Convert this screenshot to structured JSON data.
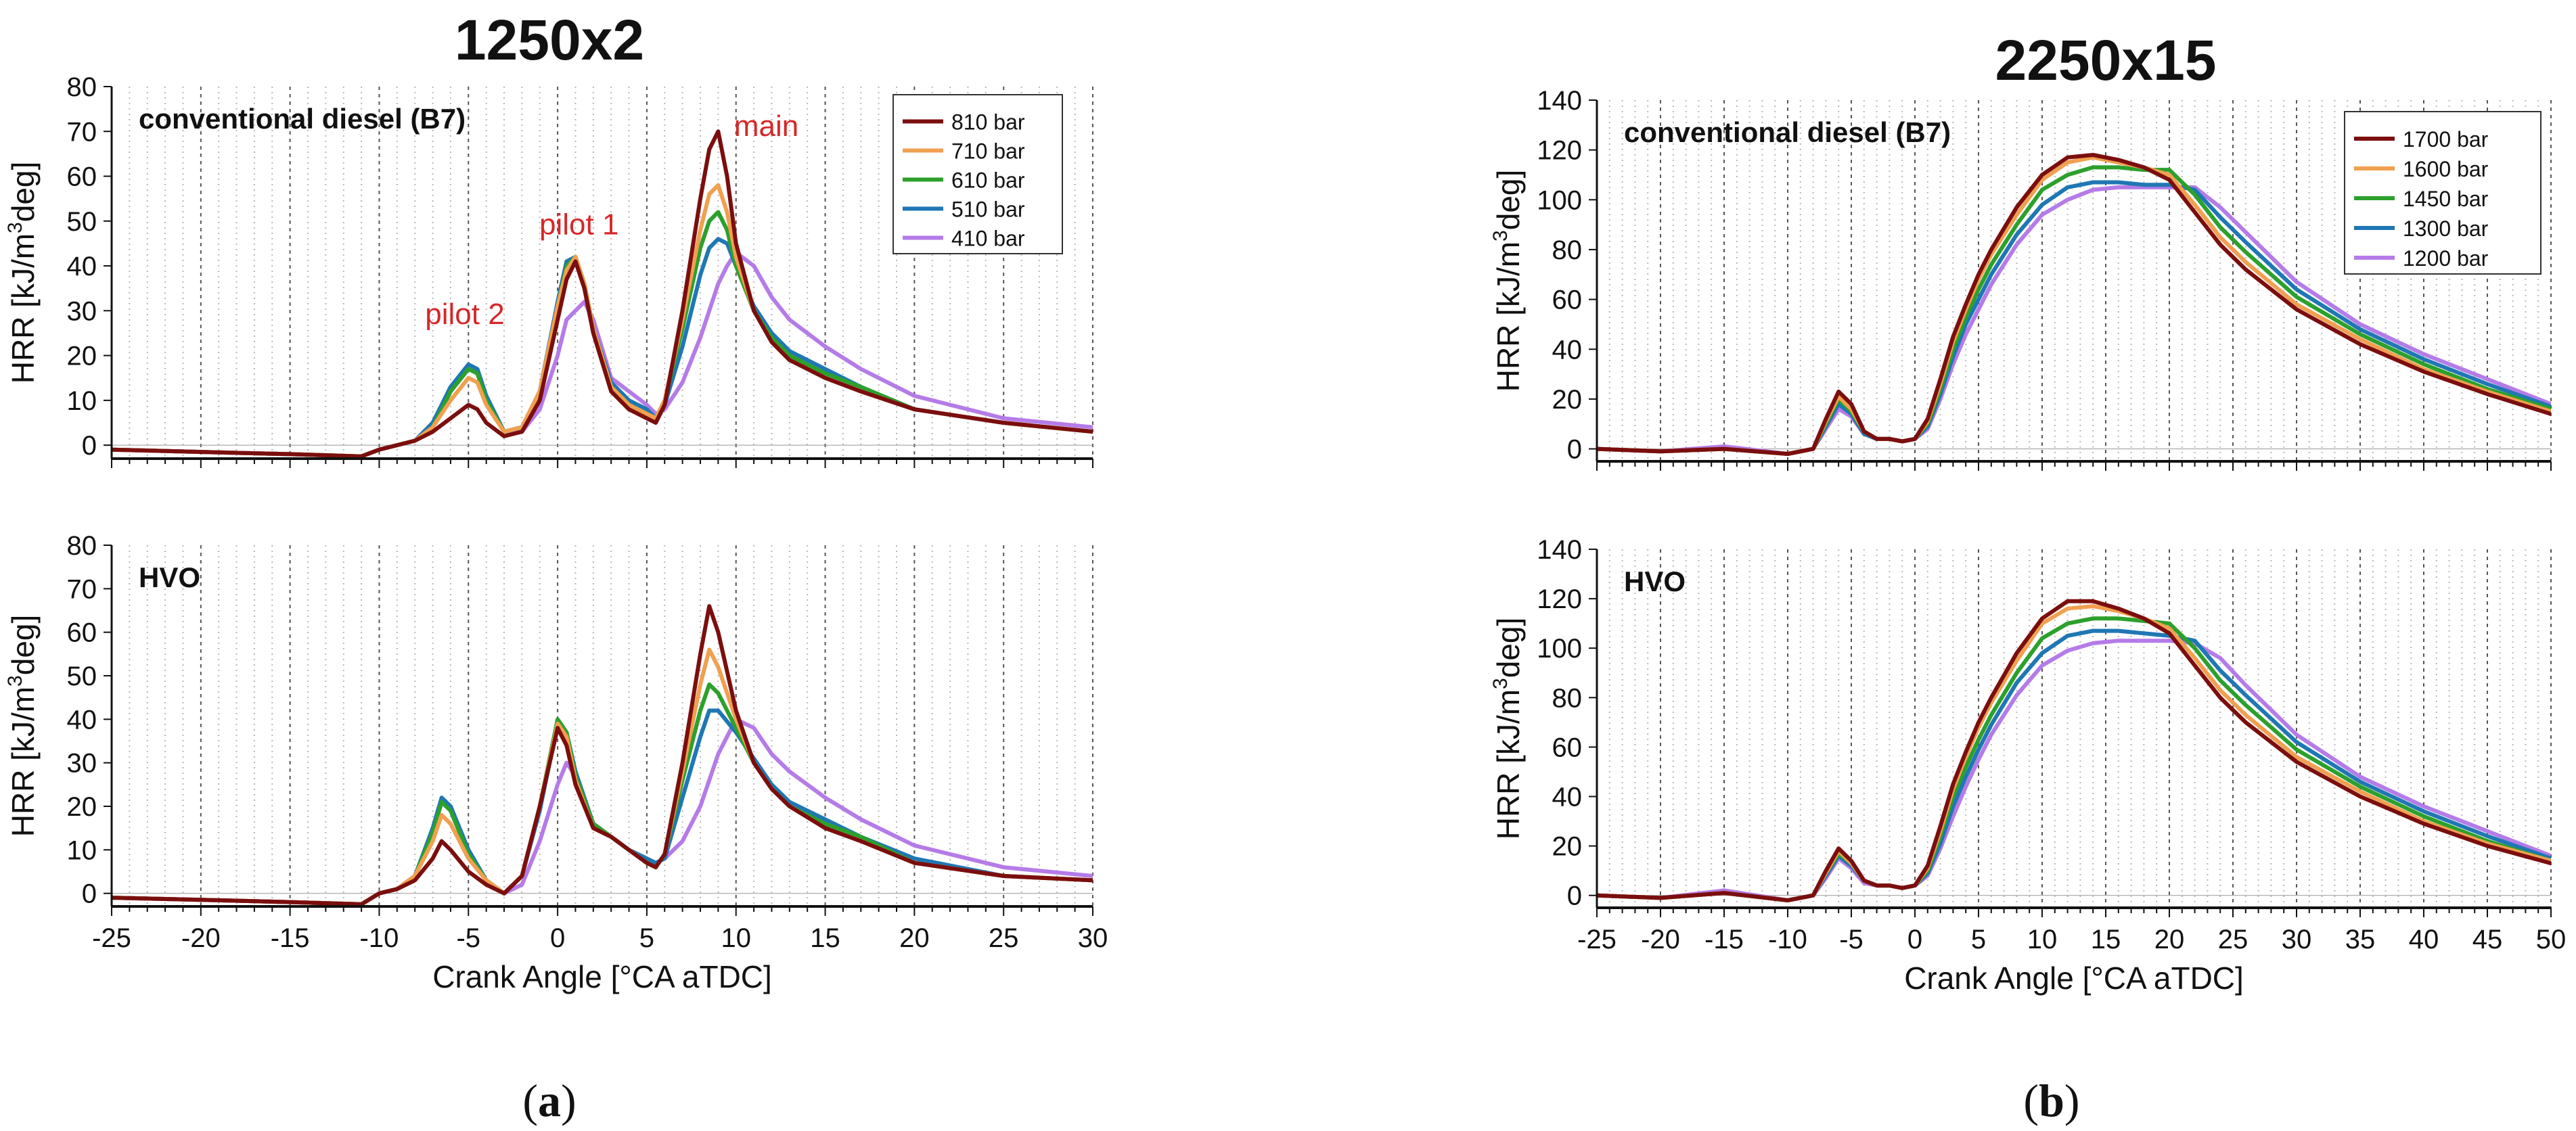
{
  "figure": {
    "titles": [
      "1250x2",
      "2250x15"
    ],
    "captions": [
      {
        "pre": "(",
        "letter": "a",
        "post": ")"
      },
      {
        "pre": "(",
        "letter": "b",
        "post": ")"
      }
    ]
  },
  "chart_data": [
    {
      "type": "line",
      "panel": "a-top",
      "title": "1250x2",
      "annotation": "conventional diesel (B7)",
      "xlabel": "",
      "ylabel": "HRR [kJ/m3deg]",
      "xlim": [
        -25,
        30
      ],
      "ylim": [
        -3,
        80
      ],
      "yticks": [
        0,
        10,
        20,
        30,
        40,
        50,
        60,
        70,
        80
      ],
      "grid": "vertical dotted",
      "legend_position": "top-right",
      "labels": [
        {
          "text": "pilot 2",
          "x": -5.2,
          "y": 27,
          "color": "#d62728"
        },
        {
          "text": "pilot 1",
          "x": 1.2,
          "y": 47,
          "color": "#d62728"
        },
        {
          "text": "main",
          "x": 11.7,
          "y": 69,
          "color": "#d62728"
        }
      ],
      "x": [
        -25,
        -20,
        -15,
        -11,
        -10,
        -9,
        -8,
        -7,
        -6,
        -5,
        -4.5,
        -4,
        -3,
        -2,
        -1,
        0,
        0.5,
        1,
        1.5,
        2,
        3,
        4,
        5,
        5.5,
        6,
        7,
        8,
        8.5,
        9,
        9.5,
        10,
        11,
        12,
        13,
        15,
        17,
        20,
        25,
        30
      ],
      "series": [
        {
          "name": "810 bar",
          "color": "#7b0e0e",
          "values": [
            -1,
            -1.5,
            -2,
            -2.5,
            -1,
            0,
            1,
            3,
            6,
            9,
            8,
            5,
            2,
            3,
            10,
            28,
            37,
            41,
            35,
            25,
            12,
            8,
            6,
            5,
            9,
            30,
            55,
            66,
            70,
            60,
            45,
            30,
            23,
            19,
            15,
            12,
            8,
            5,
            3
          ]
        },
        {
          "name": "710 bar",
          "color": "#f0a050",
          "values": [
            -1,
            -1.5,
            -2,
            -2.5,
            -1,
            0,
            1,
            4,
            10,
            15,
            14,
            9,
            3,
            4,
            12,
            31,
            39,
            42,
            36,
            26,
            13,
            9,
            7,
            6,
            10,
            28,
            48,
            56,
            58,
            52,
            42,
            30,
            23,
            19,
            15,
            12,
            8,
            5,
            3
          ]
        },
        {
          "name": "610 bar",
          "color": "#2ca02c",
          "values": [
            -1,
            -1.5,
            -2,
            -2.5,
            -1,
            0,
            1,
            4,
            12,
            17,
            16,
            10,
            3,
            4,
            12,
            31,
            40,
            42,
            36,
            26,
            13,
            9,
            7,
            6,
            10,
            26,
            44,
            50,
            52,
            48,
            40,
            30,
            24,
            20,
            16,
            13,
            8,
            5,
            3
          ]
        },
        {
          "name": "510 bar",
          "color": "#1f77b4",
          "values": [
            -1,
            -1.5,
            -2,
            -2.5,
            -1,
            0,
            1,
            5,
            13,
            18,
            17,
            11,
            3,
            4,
            12,
            32,
            41,
            42,
            36,
            26,
            14,
            10,
            8,
            6,
            9,
            22,
            38,
            44,
            46,
            45,
            40,
            31,
            25,
            21,
            17,
            13,
            8,
            5,
            3
          ]
        },
        {
          "name": "410 bar",
          "color": "#b57be8",
          "values": [
            -1,
            -1.5,
            -2,
            -2.5,
            -1,
            0,
            1,
            4,
            12,
            17,
            16,
            11,
            3,
            3,
            8,
            20,
            28,
            30,
            32,
            28,
            15,
            12,
            9,
            7,
            8,
            14,
            24,
            30,
            36,
            40,
            43,
            40,
            33,
            28,
            22,
            17,
            11,
            6,
            4
          ]
        }
      ]
    },
    {
      "type": "line",
      "panel": "a-bottom",
      "annotation": "HVO",
      "xlabel": "Crank Angle [°CA aTDC]",
      "ylabel": "HRR [kJ/m3deg]",
      "xlim": [
        -25,
        30
      ],
      "ylim": [
        -3,
        80
      ],
      "xticks": [
        -25,
        -20,
        -15,
        -10,
        -5,
        0,
        5,
        10,
        15,
        20,
        25,
        30
      ],
      "yticks": [
        0,
        10,
        20,
        30,
        40,
        50,
        60,
        70,
        80
      ],
      "grid": "vertical dotted",
      "x": [
        -25,
        -20,
        -15,
        -11,
        -10,
        -9,
        -8,
        -7,
        -6.5,
        -6,
        -5,
        -4,
        -3,
        -2,
        -1,
        0,
        0.5,
        1,
        2,
        3,
        4,
        5,
        5.5,
        6,
        7,
        8,
        8.5,
        9,
        10,
        11,
        12,
        13,
        15,
        17,
        20,
        25,
        30
      ],
      "series": [
        {
          "name": "810 bar",
          "color": "#7b0e0e",
          "values": [
            -1,
            -1.5,
            -2,
            -2.5,
            0,
            1,
            3,
            8,
            12,
            10,
            5,
            2,
            0,
            4,
            20,
            38,
            34,
            25,
            15,
            13,
            10,
            7,
            6,
            9,
            30,
            55,
            66,
            60,
            42,
            30,
            24,
            20,
            15,
            12,
            7,
            4,
            3
          ]
        },
        {
          "name": "710 bar",
          "color": "#f0a050",
          "values": [
            -1,
            -1.5,
            -2,
            -2.5,
            0,
            1,
            4,
            12,
            18,
            16,
            8,
            3,
            0,
            4,
            20,
            39,
            36,
            26,
            15,
            13,
            10,
            7,
            6,
            9,
            28,
            48,
            56,
            52,
            40,
            30,
            24,
            20,
            15,
            12,
            7,
            4,
            3
          ]
        },
        {
          "name": "610 bar",
          "color": "#2ca02c",
          "values": [
            -1,
            -1.5,
            -2,
            -2.5,
            0,
            1,
            4,
            14,
            21,
            19,
            9,
            3,
            0,
            4,
            20,
            40,
            37,
            27,
            16,
            13,
            10,
            7,
            6,
            9,
            26,
            42,
            48,
            46,
            38,
            30,
            24,
            20,
            16,
            13,
            7,
            4,
            3
          ]
        },
        {
          "name": "510 bar",
          "color": "#1f77b4",
          "values": [
            -1,
            -1.5,
            -2,
            -2.5,
            0,
            1,
            4,
            15,
            22,
            20,
            10,
            3,
            0,
            4,
            19,
            39,
            37,
            28,
            16,
            13,
            10,
            8,
            7,
            8,
            22,
            36,
            42,
            42,
            37,
            31,
            25,
            21,
            17,
            13,
            8,
            4,
            3
          ]
        },
        {
          "name": "410 bar",
          "color": "#b57be8",
          "values": [
            -1,
            -1.5,
            -2,
            -2.5,
            0,
            1,
            4,
            14,
            21,
            20,
            10,
            3,
            0,
            2,
            12,
            25,
            30,
            27,
            16,
            13,
            10,
            8,
            7,
            8,
            12,
            20,
            26,
            32,
            40,
            38,
            32,
            28,
            22,
            17,
            11,
            6,
            4
          ]
        }
      ]
    },
    {
      "type": "line",
      "panel": "b-top",
      "title": "2250x15",
      "annotation": "conventional diesel (B7)",
      "xlabel": "",
      "ylabel": "HRR [kJ/m3deg]",
      "xlim": [
        -25,
        50
      ],
      "ylim": [
        -5,
        140
      ],
      "yticks": [
        0,
        20,
        40,
        60,
        80,
        100,
        120,
        140
      ],
      "grid": "vertical dotted",
      "legend_position": "top-right",
      "x": [
        -25,
        -20,
        -15,
        -10,
        -8,
        -7,
        -6,
        -5,
        -4,
        -3,
        -2,
        -1,
        0,
        1,
        2,
        3,
        4,
        5,
        6,
        8,
        10,
        12,
        14,
        16,
        18,
        20,
        22,
        24,
        26,
        30,
        35,
        40,
        45,
        50
      ],
      "series": [
        {
          "name": "1700 bar",
          "color": "#7b0e0e",
          "values": [
            0,
            -1,
            0,
            -2,
            0,
            12,
            23,
            18,
            7,
            4,
            4,
            3,
            4,
            12,
            28,
            45,
            58,
            70,
            80,
            97,
            110,
            117,
            118,
            116,
            113,
            108,
            95,
            82,
            72,
            56,
            42,
            31,
            22,
            14
          ]
        },
        {
          "name": "1600 bar",
          "color": "#f0a050",
          "values": [
            0,
            -1,
            0,
            -2,
            0,
            11,
            21,
            16,
            7,
            4,
            4,
            3,
            4,
            11,
            26,
            43,
            56,
            68,
            78,
            94,
            108,
            115,
            117,
            115,
            113,
            110,
            98,
            85,
            75,
            58,
            44,
            32,
            23,
            15
          ]
        },
        {
          "name": "1450 bar",
          "color": "#2ca02c",
          "values": [
            0,
            -1,
            0,
            -2,
            0,
            10,
            20,
            15,
            7,
            4,
            4,
            3,
            4,
            10,
            24,
            40,
            53,
            64,
            74,
            90,
            104,
            110,
            113,
            113,
            112,
            112,
            102,
            89,
            79,
            61,
            46,
            34,
            24,
            16
          ]
        },
        {
          "name": "1300 bar",
          "color": "#1f77b4",
          "values": [
            0,
            -1,
            0,
            -2,
            0,
            9,
            18,
            14,
            6,
            4,
            4,
            3,
            4,
            9,
            22,
            37,
            50,
            60,
            70,
            86,
            98,
            105,
            107,
            107,
            106,
            106,
            104,
            93,
            83,
            64,
            48,
            36,
            26,
            17
          ]
        },
        {
          "name": "1200 bar",
          "color": "#b57be8",
          "values": [
            0,
            -1,
            1,
            -2,
            0,
            8,
            16,
            13,
            6,
            4,
            4,
            3,
            4,
            8,
            20,
            34,
            46,
            56,
            66,
            82,
            94,
            100,
            104,
            105,
            105,
            105,
            105,
            97,
            87,
            67,
            50,
            38,
            28,
            18
          ]
        }
      ]
    },
    {
      "type": "line",
      "panel": "b-bottom",
      "annotation": "HVO",
      "xlabel": "Crank Angle [°CA aTDC]",
      "ylabel": "HRR [kJ/m3deg]",
      "xlim": [
        -25,
        50
      ],
      "ylim": [
        -5,
        140
      ],
      "xticks": [
        -25,
        -20,
        -15,
        -10,
        -5,
        0,
        5,
        10,
        15,
        20,
        25,
        30,
        35,
        40,
        45,
        50
      ],
      "yticks": [
        0,
        20,
        40,
        60,
        80,
        100,
        120,
        140
      ],
      "grid": "vertical dotted",
      "x": [
        -25,
        -20,
        -15,
        -10,
        -8,
        -7,
        -6,
        -5,
        -4,
        -3,
        -2,
        -1,
        0,
        1,
        2,
        3,
        4,
        5,
        6,
        8,
        10,
        12,
        14,
        16,
        18,
        20,
        22,
        24,
        26,
        30,
        35,
        40,
        45,
        50
      ],
      "series": [
        {
          "name": "1700 bar",
          "color": "#7b0e0e",
          "values": [
            0,
            -1,
            1,
            -2,
            0,
            10,
            19,
            14,
            6,
            4,
            4,
            3,
            4,
            12,
            28,
            45,
            58,
            70,
            80,
            98,
            112,
            119,
            119,
            116,
            112,
            106,
            93,
            80,
            70,
            54,
            40,
            29,
            20,
            13
          ]
        },
        {
          "name": "1600 bar",
          "color": "#f0a050",
          "values": [
            0,
            -1,
            1,
            -2,
            0,
            9,
            18,
            13,
            6,
            4,
            4,
            3,
            4,
            11,
            26,
            43,
            56,
            68,
            78,
            95,
            110,
            116,
            117,
            115,
            112,
            108,
            96,
            83,
            73,
            56,
            42,
            30,
            21,
            14
          ]
        },
        {
          "name": "1450 bar",
          "color": "#2ca02c",
          "values": [
            0,
            -1,
            1,
            -2,
            0,
            9,
            17,
            13,
            6,
            4,
            4,
            3,
            4,
            10,
            24,
            40,
            52,
            63,
            73,
            90,
            104,
            110,
            112,
            112,
            111,
            110,
            100,
            87,
            77,
            59,
            44,
            32,
            22,
            14
          ]
        },
        {
          "name": "1300 bar",
          "color": "#1f77b4",
          "values": [
            0,
            -1,
            1,
            -2,
            0,
            8,
            16,
            12,
            6,
            4,
            4,
            3,
            4,
            9,
            21,
            36,
            48,
            59,
            69,
            86,
            98,
            105,
            107,
            107,
            106,
            105,
            103,
            91,
            81,
            62,
            46,
            34,
            24,
            15
          ]
        },
        {
          "name": "1200 bar",
          "color": "#b57be8",
          "values": [
            0,
            -1,
            2,
            -2,
            0,
            7,
            15,
            11,
            5,
            4,
            4,
            3,
            4,
            8,
            19,
            32,
            44,
            55,
            65,
            81,
            93,
            99,
            102,
            103,
            103,
            103,
            102,
            96,
            85,
            65,
            48,
            36,
            26,
            16
          ]
        }
      ]
    }
  ]
}
